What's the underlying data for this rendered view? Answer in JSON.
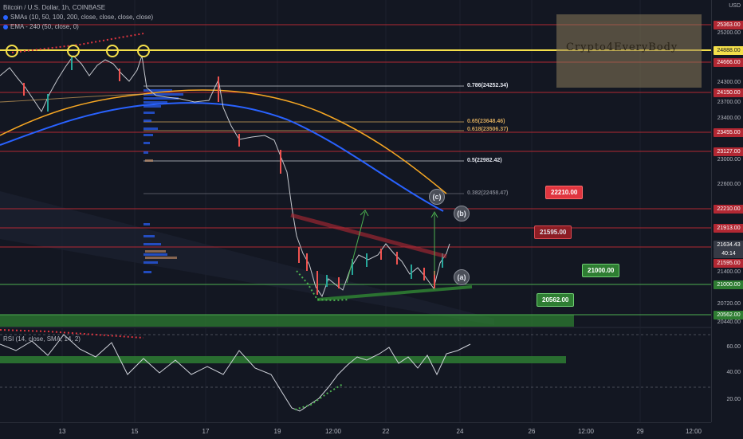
{
  "legend": {
    "symbol": "Bitcoin / U.S. Dollar, 1h, COINBASE",
    "smas": "SMAs (10, 50, 100, 200, close, close, close, close)",
    "ema": "EMA - 240 (50, close, 0)"
  },
  "rsi_legend": "RSI (14, close, SMA, 14, 2)",
  "watermark": "Crypto4EveryBody",
  "axis_currency": "USD",
  "price_tags": [
    {
      "label": "25363.00",
      "color": "#b22833",
      "text_color": "#ffffff"
    },
    {
      "label": "24888.00",
      "color": "#f5e04b",
      "text_color": "#131722"
    },
    {
      "label": "24666.00",
      "color": "#b22833",
      "text_color": "#ffffff"
    },
    {
      "label": "24150.00",
      "color": "#b22833",
      "text_color": "#ffffff"
    },
    {
      "label": "23455.00",
      "color": "#b22833",
      "text_color": "#ffffff"
    },
    {
      "label": "23127.00",
      "color": "#b22833",
      "text_color": "#ffffff"
    },
    {
      "label": "22210.00",
      "color": "#b22833",
      "text_color": "#ffffff"
    },
    {
      "label": "21913.00",
      "color": "#b22833",
      "text_color": "#ffffff"
    },
    {
      "label": "21634.43",
      "color": "#363a45",
      "text_color": "#ffffff"
    },
    {
      "label": "40:14",
      "color": "#363a45",
      "text_color": "#ffffff"
    },
    {
      "label": "21595.00",
      "color": "#b22833",
      "text_color": "#ffffff"
    },
    {
      "label": "21000.00",
      "color": "#2e7d32",
      "text_color": "#ffffff"
    },
    {
      "label": "20562.00",
      "color": "#2e7d32",
      "text_color": "#ffffff"
    }
  ],
  "price_ticks": [
    "25200.00",
    "24300.00",
    "23700.00",
    "23400.00",
    "23000.00",
    "22600.00",
    "21400.00",
    "20720.00",
    "20440.00"
  ],
  "rsi_ticks": [
    "60.00",
    "40.00",
    "20.00"
  ],
  "time_labels": [
    "13",
    "15",
    "17",
    "19",
    "12:00",
    "22",
    "24",
    "26",
    "12:00",
    "29",
    "12:00"
  ],
  "fib_labels": [
    {
      "label": "0.786(24252.34)",
      "color": "#e0e3eb"
    },
    {
      "label": "0.65(23648.46)",
      "color": "#d1a45b"
    },
    {
      "label": "0.618(23506.37)",
      "color": "#d1a45b"
    },
    {
      "label": "0.5(22982.42)",
      "color": "#e0e3eb"
    },
    {
      "label": "0.382(22458.47)",
      "color": "#787b86"
    }
  ],
  "callouts": [
    {
      "label": "22210.00",
      "bg": "#e0353f",
      "border": "#ff6b6b",
      "color": "#ffffff"
    },
    {
      "label": "21595.00",
      "bg": "#8c1d24",
      "border": "#d94a52",
      "color": "#e0e3eb"
    },
    {
      "label": "21000.00",
      "bg": "#2e7d32",
      "border": "#6fcf73",
      "color": "#ffffff"
    },
    {
      "label": "20562.00",
      "bg": "#2e7d32",
      "border": "#6fcf73",
      "color": "#ffffff"
    }
  ],
  "wave_labels": [
    "(c)",
    "(b)",
    "(a)"
  ],
  "colors": {
    "resistance": "#b22833",
    "support": "#4caf50",
    "highlight": "#f5e04b",
    "ema_blue": "#2962ff",
    "sma_orange": "#f5a623",
    "candle_up": "#26a69a",
    "candle_down": "#ef5350"
  }
}
